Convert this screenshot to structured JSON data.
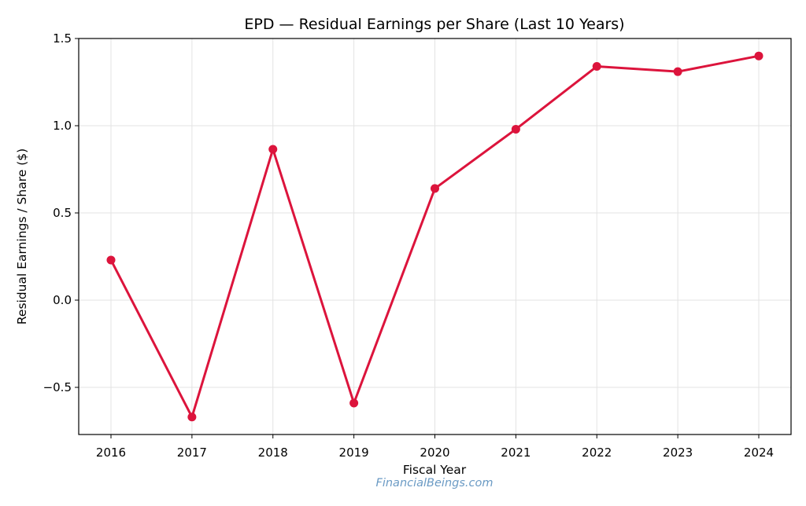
{
  "chart_data": {
    "type": "line",
    "title": "EPD — Residual Earnings per Share (Last 10 Years)",
    "xlabel": "Fiscal Year",
    "ylabel": "Residual Earnings / Share ($)",
    "categories": [
      "2016",
      "2017",
      "2018",
      "2019",
      "2020",
      "2021",
      "2022",
      "2023",
      "2024"
    ],
    "series": [
      {
        "name": "Residual Earnings / Share",
        "values": [
          0.23,
          -0.67,
          0.865,
          -0.59,
          0.64,
          0.98,
          1.34,
          1.31,
          1.4
        ],
        "color": "#dc143c"
      }
    ],
    "yticks": [
      "1.5",
      "1.0",
      "0.5",
      "0.0",
      "−0.5"
    ],
    "ytick_values": [
      1.5,
      1.0,
      0.5,
      0.0,
      -0.5
    ],
    "ylim": [
      -0.77,
      1.5
    ],
    "grid": true,
    "legend": null
  },
  "watermark": "FinancialBeings.com"
}
